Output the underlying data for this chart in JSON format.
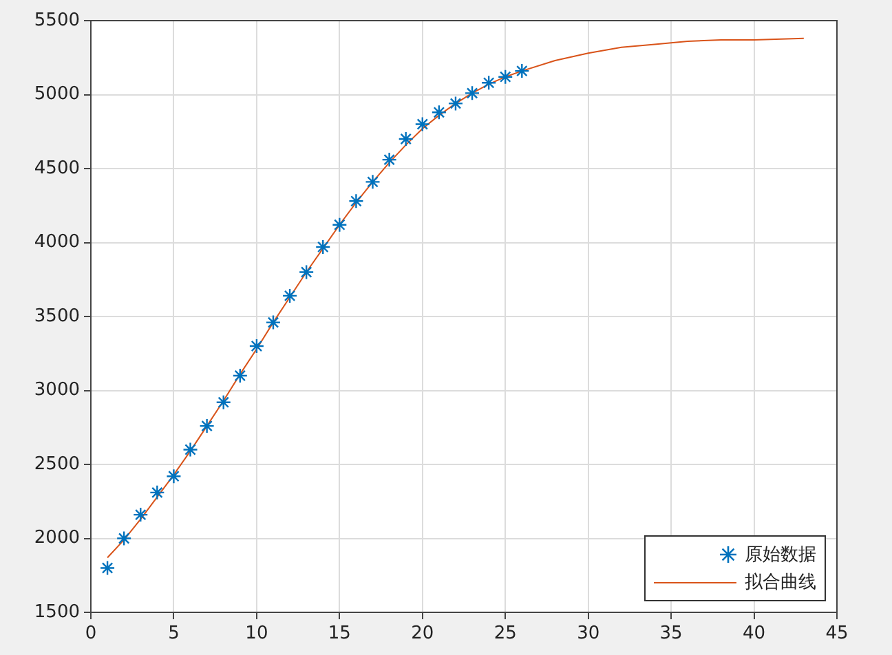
{
  "chart_data": {
    "type": "line",
    "xlim": [
      0,
      45
    ],
    "ylim": [
      1500,
      5500
    ],
    "xticks": [
      0,
      5,
      10,
      15,
      20,
      25,
      30,
      35,
      40,
      45
    ],
    "yticks": [
      1500,
      2000,
      2500,
      3000,
      3500,
      4000,
      4500,
      5000,
      5500
    ],
    "grid": true,
    "legend": "bottom right",
    "series": [
      {
        "name": "原始数据",
        "type": "scatter",
        "marker": "cross",
        "color": "#0072bd",
        "x": [
          1,
          2,
          3,
          4,
          5,
          6,
          7,
          8,
          9,
          10,
          11,
          12,
          13,
          14,
          15,
          16,
          17,
          18,
          19,
          20,
          21,
          22,
          23,
          24,
          25,
          26
        ],
        "values": [
          1800,
          2000,
          2160,
          2310,
          2420,
          2600,
          2760,
          2920,
          3100,
          3300,
          3460,
          3640,
          3800,
          3970,
          4120,
          4280,
          4410,
          4560,
          4700,
          4800,
          4880,
          4940,
          5010,
          5080,
          5120,
          5160
        ]
      },
      {
        "name": "拟合曲线",
        "marker": "none",
        "color": "#d95319",
        "x": [
          1,
          2,
          3,
          4,
          5,
          6,
          7,
          8,
          9,
          10,
          11,
          12,
          13,
          14,
          15,
          16,
          17,
          18,
          19,
          20,
          21,
          22,
          23,
          24,
          25,
          26,
          28,
          30,
          32,
          34,
          36,
          38,
          40,
          43
        ],
        "values": [
          1870,
          1990,
          2130,
          2280,
          2430,
          2590,
          2760,
          2930,
          3110,
          3280,
          3460,
          3630,
          3800,
          3960,
          4120,
          4270,
          4410,
          4540,
          4660,
          4770,
          4860,
          4940,
          5010,
          5070,
          5120,
          5160,
          5230,
          5280,
          5320,
          5340,
          5360,
          5370,
          5370,
          5380
        ]
      }
    ]
  }
}
